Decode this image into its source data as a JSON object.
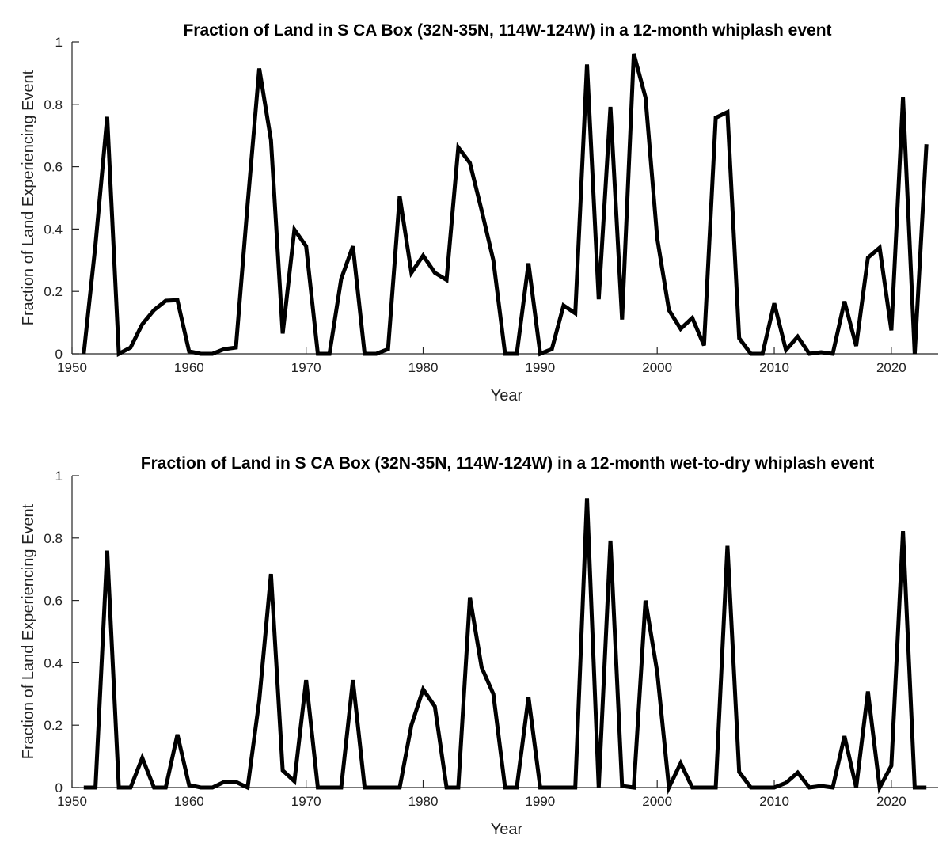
{
  "chart_data": [
    {
      "type": "line",
      "title": "Fraction of Land in S CA Box (32N-35N, 114W-124W) in a 12-month whiplash event",
      "xlabel": "Year",
      "ylabel": "Fraction of Land Experiencing Event",
      "xlim": [
        1950,
        2024
      ],
      "ylim": [
        0,
        1
      ],
      "xticks": [
        1950,
        1960,
        1970,
        1980,
        1990,
        2000,
        2010,
        2020
      ],
      "yticks": [
        0,
        0.2,
        0.4,
        0.6,
        0.8,
        1
      ],
      "ytick_labels": [
        "0",
        "0.2",
        "0.4",
        "0.6",
        "0.8",
        "1"
      ],
      "grid": false,
      "line_color": "#000000",
      "x": [
        1951,
        1952,
        1953,
        1954,
        1955,
        1956,
        1957,
        1958,
        1959,
        1960,
        1961,
        1962,
        1963,
        1964,
        1965,
        1966,
        1967,
        1968,
        1969,
        1970,
        1971,
        1972,
        1973,
        1974,
        1975,
        1976,
        1977,
        1978,
        1979,
        1980,
        1981,
        1982,
        1983,
        1984,
        1985,
        1986,
        1987,
        1988,
        1989,
        1990,
        1991,
        1992,
        1993,
        1994,
        1995,
        1996,
        1997,
        1998,
        1999,
        2000,
        2001,
        2002,
        2003,
        2004,
        2005,
        2006,
        2007,
        2008,
        2009,
        2010,
        2011,
        2012,
        2013,
        2014,
        2015,
        2016,
        2017,
        2018,
        2019,
        2020,
        2021,
        2022,
        2023
      ],
      "values": [
        0,
        0.35,
        0.76,
        0,
        0.02,
        0.095,
        0.14,
        0.17,
        0.172,
        0.008,
        0,
        0,
        0.015,
        0.02,
        0.48,
        0.915,
        0.685,
        0.065,
        0.398,
        0.345,
        0,
        0,
        0.24,
        0.345,
        0,
        0,
        0.015,
        0.505,
        0.26,
        0.315,
        0.26,
        0.237,
        0.662,
        0.612,
        0.46,
        0.3,
        0,
        0,
        0.29,
        0,
        0.015,
        0.155,
        0.13,
        0.928,
        0.175,
        0.792,
        0.11,
        0.962,
        0.822,
        0.37,
        0.14,
        0.08,
        0.115,
        0.027,
        0.757,
        0.775,
        0.05,
        0,
        0,
        0.162,
        0.012,
        0.055,
        0,
        0.005,
        0,
        0.168,
        0.025,
        0.308,
        0.34,
        0.075,
        0.822,
        0,
        0.672
      ]
    },
    {
      "type": "line",
      "title": "Fraction of Land in S CA Box (32N-35N, 114W-124W) in a 12-month wet-to-dry whiplash event",
      "xlabel": "Year",
      "ylabel": "Fraction of Land Experiencing Event",
      "xlim": [
        1950,
        2024
      ],
      "ylim": [
        0,
        1
      ],
      "xticks": [
        1950,
        1960,
        1970,
        1980,
        1990,
        2000,
        2010,
        2020
      ],
      "yticks": [
        0,
        0.2,
        0.4,
        0.6,
        0.8,
        1
      ],
      "ytick_labels": [
        "0",
        "0.2",
        "0.4",
        "0.6",
        "0.8",
        "1"
      ],
      "grid": false,
      "line_color": "#000000",
      "x": [
        1951,
        1952,
        1953,
        1954,
        1955,
        1956,
        1957,
        1958,
        1959,
        1960,
        1961,
        1962,
        1963,
        1964,
        1965,
        1966,
        1967,
        1968,
        1969,
        1970,
        1971,
        1972,
        1973,
        1974,
        1975,
        1976,
        1977,
        1978,
        1979,
        1980,
        1981,
        1982,
        1983,
        1984,
        1985,
        1986,
        1987,
        1988,
        1989,
        1990,
        1991,
        1992,
        1993,
        1994,
        1995,
        1996,
        1997,
        1998,
        1999,
        2000,
        2001,
        2002,
        2003,
        2004,
        2005,
        2006,
        2007,
        2008,
        2009,
        2010,
        2011,
        2012,
        2013,
        2014,
        2015,
        2016,
        2017,
        2018,
        2019,
        2020,
        2021,
        2022,
        2023
      ],
      "values": [
        0,
        0,
        0.76,
        0,
        0,
        0.095,
        0,
        0,
        0.17,
        0.008,
        0,
        0,
        0.018,
        0.018,
        0,
        0.28,
        0.685,
        0.055,
        0.02,
        0.345,
        0,
        0,
        0,
        0.345,
        0,
        0,
        0,
        0,
        0.2,
        0.315,
        0.26,
        0,
        0,
        0.61,
        0.385,
        0.3,
        0,
        0,
        0.29,
        0,
        0,
        0,
        0,
        0.928,
        0,
        0.792,
        0.005,
        0,
        0.6,
        0.37,
        0,
        0.078,
        0,
        0,
        0,
        0.775,
        0.05,
        0,
        0,
        0,
        0.015,
        0.048,
        0,
        0.005,
        0,
        0.165,
        0,
        0.308,
        0,
        0.07,
        0.822,
        0,
        0
      ]
    }
  ]
}
